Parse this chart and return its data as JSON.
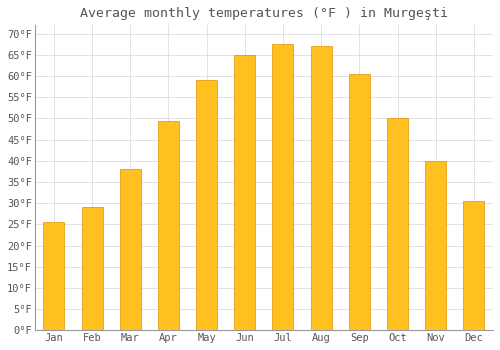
{
  "title": "Average monthly temperatures (°F ) in Murgeşti",
  "months": [
    "Jan",
    "Feb",
    "Mar",
    "Apr",
    "May",
    "Jun",
    "Jul",
    "Aug",
    "Sep",
    "Oct",
    "Nov",
    "Dec"
  ],
  "values": [
    25.5,
    29.0,
    38.0,
    49.5,
    59.0,
    65.0,
    67.5,
    67.0,
    60.5,
    50.0,
    40.0,
    30.5
  ],
  "bar_color_top": "#FFC020",
  "bar_color_bottom": "#F5A800",
  "bar_edge_color": "#E09000",
  "background_color": "#FFFFFF",
  "plot_bg_color": "#FFFFFF",
  "grid_color": "#DDDDDD",
  "text_color": "#555555",
  "axis_color": "#999999",
  "ylim": [
    0,
    72
  ],
  "yticks": [
    0,
    5,
    10,
    15,
    20,
    25,
    30,
    35,
    40,
    45,
    50,
    55,
    60,
    65,
    70
  ],
  "title_fontsize": 9.5,
  "tick_fontsize": 7.5,
  "bar_width": 0.55,
  "figsize": [
    5.0,
    3.5
  ],
  "dpi": 100
}
